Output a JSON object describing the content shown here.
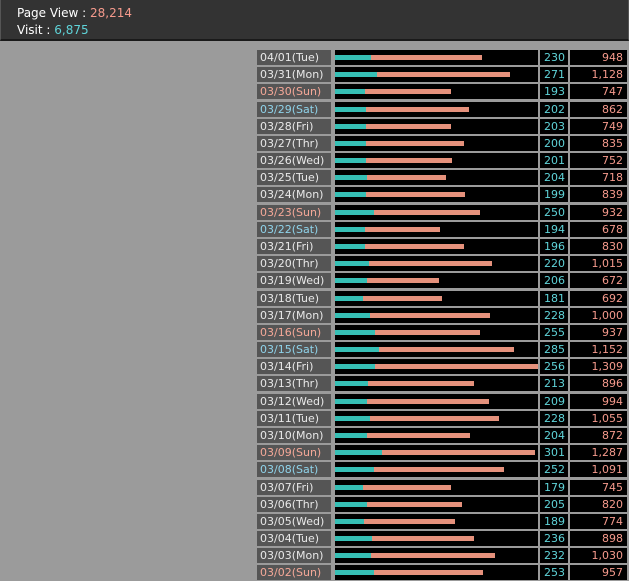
{
  "header": {
    "page_view_label": "Page View : ",
    "page_view_value": "28,214",
    "visit_label": "Visit : ",
    "visit_value": "6,875"
  },
  "colors": {
    "visit_bar": "#36bfb5",
    "pageview_bar": "#e5917c",
    "sunday_text": "#f5a898",
    "saturday_text": "#8fd3ea"
  },
  "rows": [
    {
      "date": "04/01(Tue)",
      "day": "weekday",
      "visit": "230",
      "pv": "948"
    },
    {
      "date": "03/31(Mon)",
      "day": "weekday",
      "visit": "271",
      "pv": "1,128"
    },
    {
      "date": "03/30(Sun)",
      "day": "sun",
      "visit": "193",
      "pv": "747"
    },
    {
      "date": "03/29(Sat)",
      "day": "sat",
      "visit": "202",
      "pv": "862"
    },
    {
      "date": "03/28(Fri)",
      "day": "weekday",
      "visit": "203",
      "pv": "749"
    },
    {
      "date": "03/27(Thr)",
      "day": "weekday",
      "visit": "200",
      "pv": "835"
    },
    {
      "date": "03/26(Wed)",
      "day": "weekday",
      "visit": "201",
      "pv": "752"
    },
    {
      "date": "03/25(Tue)",
      "day": "weekday",
      "visit": "204",
      "pv": "718"
    },
    {
      "date": "03/24(Mon)",
      "day": "weekday",
      "visit": "199",
      "pv": "839"
    },
    {
      "date": "03/23(Sun)",
      "day": "sun",
      "visit": "250",
      "pv": "932"
    },
    {
      "date": "03/22(Sat)",
      "day": "sat",
      "visit": "194",
      "pv": "678"
    },
    {
      "date": "03/21(Fri)",
      "day": "weekday",
      "visit": "196",
      "pv": "830"
    },
    {
      "date": "03/20(Thr)",
      "day": "weekday",
      "visit": "220",
      "pv": "1,015"
    },
    {
      "date": "03/19(Wed)",
      "day": "weekday",
      "visit": "206",
      "pv": "672"
    },
    {
      "date": "03/18(Tue)",
      "day": "weekday",
      "visit": "181",
      "pv": "692"
    },
    {
      "date": "03/17(Mon)",
      "day": "weekday",
      "visit": "228",
      "pv": "1,000"
    },
    {
      "date": "03/16(Sun)",
      "day": "sun",
      "visit": "255",
      "pv": "937"
    },
    {
      "date": "03/15(Sat)",
      "day": "sat",
      "visit": "285",
      "pv": "1,152"
    },
    {
      "date": "03/14(Fri)",
      "day": "weekday",
      "visit": "256",
      "pv": "1,309"
    },
    {
      "date": "03/13(Thr)",
      "day": "weekday",
      "visit": "213",
      "pv": "896"
    },
    {
      "date": "03/12(Wed)",
      "day": "weekday",
      "visit": "209",
      "pv": "994"
    },
    {
      "date": "03/11(Tue)",
      "day": "weekday",
      "visit": "228",
      "pv": "1,055"
    },
    {
      "date": "03/10(Mon)",
      "day": "weekday",
      "visit": "204",
      "pv": "872"
    },
    {
      "date": "03/09(Sun)",
      "day": "sun",
      "visit": "301",
      "pv": "1,287"
    },
    {
      "date": "03/08(Sat)",
      "day": "sat",
      "visit": "252",
      "pv": "1,091"
    },
    {
      "date": "03/07(Fri)",
      "day": "weekday",
      "visit": "179",
      "pv": "745"
    },
    {
      "date": "03/06(Thr)",
      "day": "weekday",
      "visit": "205",
      "pv": "820"
    },
    {
      "date": "03/05(Wed)",
      "day": "weekday",
      "visit": "189",
      "pv": "774"
    },
    {
      "date": "03/04(Tue)",
      "day": "weekday",
      "visit": "236",
      "pv": "898"
    },
    {
      "date": "03/03(Mon)",
      "day": "weekday",
      "visit": "232",
      "pv": "1,030"
    },
    {
      "date": "03/02(Sun)",
      "day": "sun",
      "visit": "253",
      "pv": "957"
    }
  ]
}
